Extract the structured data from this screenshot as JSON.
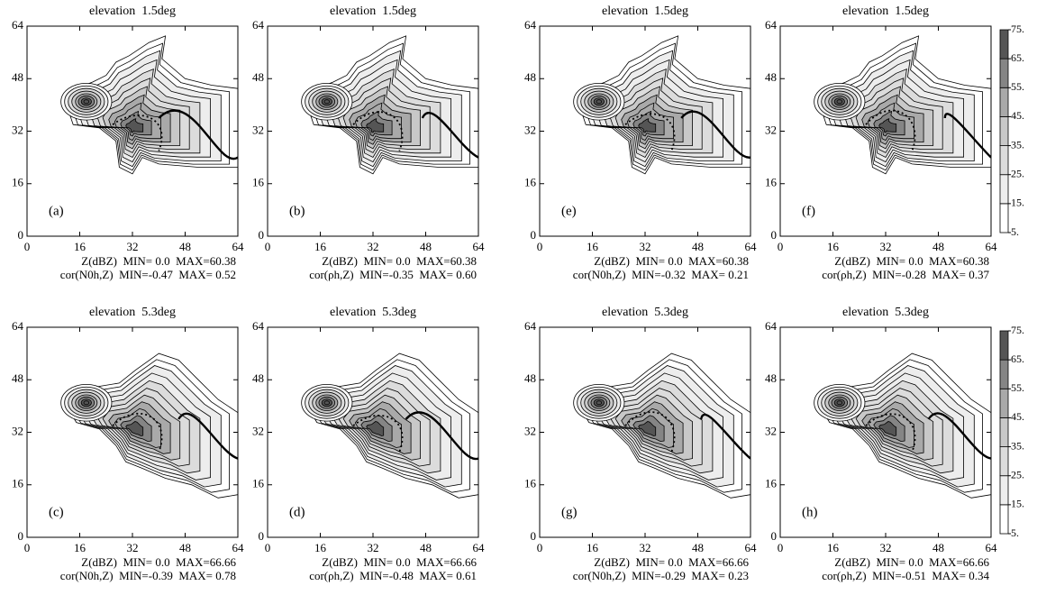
{
  "chart_data": [
    {
      "type": "contour",
      "title": "elevation  1.5deg",
      "annotation": "(a)",
      "xlim": [
        0,
        64
      ],
      "ylim": [
        0,
        64
      ],
      "xticks": [
        0,
        16,
        32,
        48,
        64
      ],
      "yticks": [
        0,
        16,
        32,
        48,
        64
      ],
      "notes": [
        "Z(dBZ)  MIN= 0.0  MAX=60.38",
        "cor(N0h,Z)  MIN=-0.47  MAX= 0.52"
      ]
    },
    {
      "type": "contour",
      "title": "elevation  1.5deg",
      "annotation": "(b)",
      "xlim": [
        0,
        64
      ],
      "ylim": [
        0,
        64
      ],
      "xticks": [
        0,
        16,
        32,
        48,
        64
      ],
      "yticks": [
        0,
        16,
        32,
        48,
        64
      ],
      "notes": [
        "Z(dBZ)  MIN= 0.0  MAX=60.38",
        "cor(ρh,Z)  MIN=-0.35  MAX= 0.60"
      ]
    },
    {
      "type": "contour",
      "title": "elevation  1.5deg",
      "annotation": "(e)",
      "xlim": [
        0,
        64
      ],
      "ylim": [
        0,
        64
      ],
      "xticks": [
        0,
        16,
        32,
        48,
        64
      ],
      "yticks": [
        0,
        16,
        32,
        48,
        64
      ],
      "notes": [
        "Z(dBZ)  MIN= 0.0  MAX=60.38",
        "cor(N0h,Z)  MIN=-0.32  MAX= 0.21"
      ]
    },
    {
      "type": "contour",
      "title": "elevation  1.5deg",
      "annotation": "(f)",
      "xlim": [
        0,
        64
      ],
      "ylim": [
        0,
        64
      ],
      "xticks": [
        0,
        16,
        32,
        48,
        64
      ],
      "yticks": [
        0,
        16,
        32,
        48,
        64
      ],
      "notes": [
        "Z(dBZ)  MIN= 0.0  MAX=60.38",
        "cor(ρh,Z)  MIN=-0.28  MAX= 0.37"
      ],
      "colorbar": {
        "ticks": [
          {
            "value": 75,
            "label": "75."
          },
          {
            "value": 65,
            "label": "65."
          },
          {
            "value": 55,
            "label": "55."
          },
          {
            "value": 45,
            "label": "45."
          },
          {
            "value": 35,
            "label": "35."
          },
          {
            "value": 25,
            "label": "25."
          },
          {
            "value": 15,
            "label": "15."
          },
          {
            "value": 5,
            "label": "5."
          }
        ],
        "lim": [
          5,
          75
        ],
        "colors": [
          "#ffffff",
          "#ededed",
          "#dcdcdc",
          "#c8c8c8",
          "#a9a9a9",
          "#858585",
          "#555555"
        ]
      }
    },
    {
      "type": "contour",
      "title": "elevation  5.3deg",
      "annotation": "(c)",
      "xlim": [
        0,
        64
      ],
      "ylim": [
        0,
        64
      ],
      "xticks": [
        0,
        16,
        32,
        48,
        64
      ],
      "yticks": [
        0,
        16,
        32,
        48,
        64
      ],
      "notes": [
        "Z(dBZ)  MIN= 0.0  MAX=66.66",
        "cor(N0h,Z)  MIN=-0.39  MAX= 0.78"
      ]
    },
    {
      "type": "contour",
      "title": "elevation  5.3deg",
      "annotation": "(d)",
      "xlim": [
        0,
        64
      ],
      "ylim": [
        0,
        64
      ],
      "xticks": [
        0,
        16,
        32,
        48,
        64
      ],
      "yticks": [
        0,
        16,
        32,
        48,
        64
      ],
      "notes": [
        "Z(dBZ)  MIN= 0.0  MAX=66.66",
        "cor(ρh,Z)  MIN=-0.48  MAX= 0.61"
      ]
    },
    {
      "type": "contour",
      "title": "elevation  5.3deg",
      "annotation": "(g)",
      "xlim": [
        0,
        64
      ],
      "ylim": [
        0,
        64
      ],
      "xticks": [
        0,
        16,
        32,
        48,
        64
      ],
      "yticks": [
        0,
        16,
        32,
        48,
        64
      ],
      "notes": [
        "Z(dBZ)  MIN= 0.0  MAX=66.66",
        "cor(N0h,Z)  MIN=-0.29  MAX= 0.23"
      ]
    },
    {
      "type": "contour",
      "title": "elevation  5.3deg",
      "annotation": "(h)",
      "xlim": [
        0,
        64
      ],
      "ylim": [
        0,
        64
      ],
      "xticks": [
        0,
        16,
        32,
        48,
        64
      ],
      "yticks": [
        0,
        16,
        32,
        48,
        64
      ],
      "notes": [
        "Z(dBZ)  MIN= 0.0  MAX=66.66",
        "cor(ρh,Z)  MIN=-0.51  MAX= 0.34"
      ],
      "colorbar": {
        "ticks": [
          {
            "value": 75,
            "label": "75."
          },
          {
            "value": 65,
            "label": "65."
          },
          {
            "value": 55,
            "label": "55."
          },
          {
            "value": 45,
            "label": "45."
          },
          {
            "value": 35,
            "label": "35."
          },
          {
            "value": 25,
            "label": "25."
          },
          {
            "value": 15,
            "label": "15."
          },
          {
            "value": 5,
            "label": "5."
          }
        ],
        "lim": [
          5,
          75
        ],
        "colors": [
          "#ffffff",
          "#ededed",
          "#dcdcdc",
          "#c8c8c8",
          "#a9a9a9",
          "#858585",
          "#555555"
        ]
      }
    }
  ]
}
